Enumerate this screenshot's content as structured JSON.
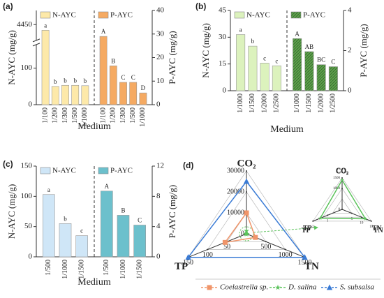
{
  "chart_data": [
    {
      "type": "bar",
      "label": "(a)",
      "xlabel": "Medium",
      "ylabel": "N-AYC (mg/g)",
      "y2label": "P-AYC (mg/g)",
      "categories": [
        "1/100",
        "1/200",
        "1/300",
        "1/500",
        "1/1000"
      ],
      "ylim": [
        0,
        4500
      ],
      "ybreak": [
        160,
        4400
      ],
      "yticks": [
        0,
        100,
        4450
      ],
      "y2lim": [
        0,
        40
      ],
      "y2ticks": [
        0,
        10,
        20,
        30,
        40
      ],
      "series": [
        {
          "name": "N-AYC",
          "color": "#fde9a9",
          "values": [
            4430,
            50,
            53,
            53,
            52
          ],
          "annotations": [
            "a",
            "b",
            "b",
            "b",
            "b"
          ]
        },
        {
          "name": "P-AYC",
          "color": "#f5aa62",
          "axis": "y2",
          "values": [
            29,
            16.5,
            9.5,
            9.5,
            5
          ],
          "annotations": [
            "A",
            "B",
            "C",
            "C",
            "D"
          ]
        }
      ]
    },
    {
      "type": "bar",
      "label": "(b)",
      "xlabel": "Medium",
      "ylabel": "N-AYC (mg/g)",
      "y2label": "P-AYC (mg/g)",
      "categories": [
        "1/1000",
        "1/1500",
        "1/2000",
        "1/2500"
      ],
      "ylim": [
        0,
        45
      ],
      "yticks": [
        0,
        15,
        30,
        45
      ],
      "y2lim": [
        0,
        4
      ],
      "y2ticks": [
        0,
        2,
        4
      ],
      "series": [
        {
          "name": "N-AYC",
          "color": "#dcf2bd",
          "values": [
            31.5,
            25,
            15.5,
            14
          ],
          "annotations": [
            "a",
            "b",
            "c",
            "c"
          ]
        },
        {
          "name": "P-AYC",
          "color": "#5f9e4c",
          "axis": "y2",
          "hatch": true,
          "values": [
            2.6,
            1.95,
            1.3,
            1.2
          ],
          "annotations": [
            "A",
            "AB",
            "BC",
            "C"
          ]
        }
      ]
    },
    {
      "type": "bar",
      "label": "(c)",
      "xlabel": "Medium",
      "ylabel": "N-AYC (mg/g)",
      "y2label": "P-AYC (mg/g)",
      "categories": [
        "1/500",
        "1/1000",
        "1/1500"
      ],
      "ylim": [
        0,
        150
      ],
      "yticks": [
        0,
        50,
        100,
        150
      ],
      "y2lim": [
        0,
        12
      ],
      "y2ticks": [
        0,
        4,
        8,
        12
      ],
      "series": [
        {
          "name": "N-AYC",
          "color": "#cfe6f7",
          "values": [
            103,
            55,
            35
          ],
          "annotations": [
            "a",
            "b",
            "c"
          ]
        },
        {
          "name": "P-AYC",
          "color": "#6cc0cc",
          "axis": "y2",
          "values": [
            8.7,
            5.5,
            4.2
          ],
          "annotations": [
            "A",
            "B",
            "C"
          ]
        }
      ]
    },
    {
      "type": "radar",
      "label": "(d)",
      "axes": [
        {
          "name": "CO₂",
          "lim": [
            0,
            30000
          ],
          "ticks": [
            0,
            10000,
            20000,
            30000
          ]
        },
        {
          "name": "TN",
          "lim": [
            0,
            1500
          ],
          "ticks": [
            500,
            1000,
            1500
          ]
        },
        {
          "name": "TP",
          "lim": [
            0,
            150
          ],
          "ticks": [
            50,
            100,
            150
          ]
        }
      ],
      "series": [
        {
          "name": "Coelastrella sp.",
          "color": "#f0956a",
          "marker": "square",
          "values": [
            10000,
            230,
            55
          ]
        },
        {
          "name": "D. salina",
          "color": "#5cc35c",
          "marker": "star",
          "values": [
            1400,
            12,
            1.5
          ]
        },
        {
          "name": "S. subsalsa",
          "color": "#3a7bd5",
          "marker": "triangle",
          "values": [
            25000,
            1500,
            150
          ]
        }
      ],
      "inset": {
        "axes": [
          {
            "lim": [
              0,
              1500
            ],
            "ticks": [
              0,
              1000,
              1500
            ]
          },
          {
            "lim": [
              0,
              15
            ],
            "ticks": [
              5,
              10,
              15
            ]
          },
          {
            "lim": [
              0,
              2
            ],
            "ticks": [
              1,
              2
            ]
          }
        ],
        "color": "#5cc35c",
        "values": [
          1400,
          12,
          1.5
        ]
      }
    }
  ]
}
